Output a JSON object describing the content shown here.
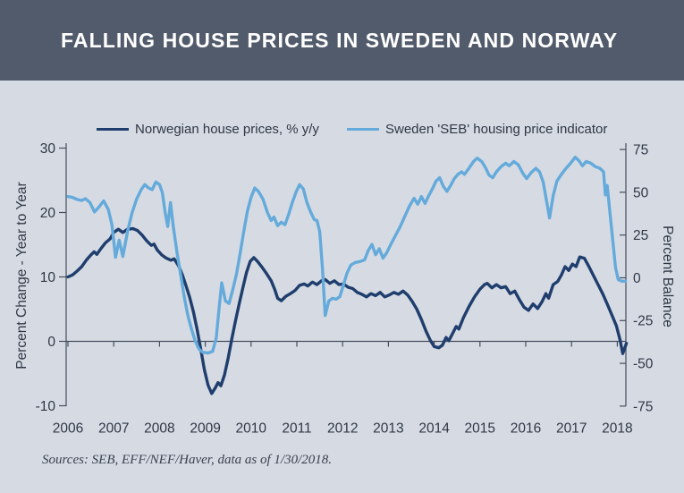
{
  "header": {
    "title": "FALLING HOUSE PRICES IN SWEDEN AND NORWAY"
  },
  "legend": [
    {
      "label": "Norwegian house prices, % y/y",
      "color": "#1f3e6d"
    },
    {
      "label": "Sweden 'SEB' housing price indicator",
      "color": "#64aadb"
    }
  ],
  "source_note": "Sources: SEB, EFF/NEF/Haver, data as of 1/30/2018.",
  "colors": {
    "header_background": "#525b6c",
    "page_background": "#d6dbe3",
    "axis_line": "#454d5d",
    "tick_text": "#2f3744",
    "norway_line": "#1f3e6d",
    "sweden_line": "#64aadb"
  },
  "chart_data": {
    "type": "line",
    "title": "FALLING HOUSE PRICES IN SWEDEN AND NORWAY",
    "grid": "zero-baseline-only",
    "legend_position": "top",
    "x_ticks": [
      "2006",
      "2007",
      "2008",
      "2009",
      "2010",
      "2011",
      "2012",
      "2013",
      "2014",
      "2015",
      "2016",
      "2017",
      "2018"
    ],
    "left_axis": {
      "label": "Percent Change - Year to Year",
      "ticks": [
        30,
        20,
        10,
        0,
        -10
      ],
      "range": [
        -10,
        30
      ]
    },
    "right_axis": {
      "label": "Percent Balance",
      "ticks": [
        75,
        50,
        25,
        0,
        -25,
        -50,
        -75
      ],
      "range": [
        -75,
        75
      ]
    },
    "series": [
      {
        "name": "Norwegian house prices, % y/y",
        "axis": "left",
        "color": "#1f3e6d",
        "points": [
          [
            2006.0,
            10
          ],
          [
            2006.1,
            10.3
          ],
          [
            2006.2,
            10.9
          ],
          [
            2006.3,
            11.6
          ],
          [
            2006.4,
            12.6
          ],
          [
            2006.5,
            13.4
          ],
          [
            2006.57,
            13.9
          ],
          [
            2006.63,
            13.5
          ],
          [
            2006.72,
            14.4
          ],
          [
            2006.82,
            15.3
          ],
          [
            2006.92,
            15.9
          ],
          [
            2007.0,
            16.9
          ],
          [
            2007.1,
            17.4
          ],
          [
            2007.2,
            16.9
          ],
          [
            2007.3,
            17.4
          ],
          [
            2007.42,
            17.5
          ],
          [
            2007.52,
            17.2
          ],
          [
            2007.62,
            16.5
          ],
          [
            2007.72,
            15.6
          ],
          [
            2007.82,
            14.9
          ],
          [
            2007.88,
            15.1
          ],
          [
            2007.95,
            14.2
          ],
          [
            2008.05,
            13.4
          ],
          [
            2008.15,
            12.9
          ],
          [
            2008.25,
            12.6
          ],
          [
            2008.32,
            12.8
          ],
          [
            2008.42,
            11.7
          ],
          [
            2008.5,
            10.3
          ],
          [
            2008.58,
            8.6
          ],
          [
            2008.66,
            6.8
          ],
          [
            2008.74,
            4.6
          ],
          [
            2008.82,
            1.9
          ],
          [
            2008.9,
            -1.2
          ],
          [
            2008.98,
            -4.4
          ],
          [
            2009.06,
            -6.8
          ],
          [
            2009.14,
            -8.1
          ],
          [
            2009.22,
            -7.2
          ],
          [
            2009.28,
            -6.4
          ],
          [
            2009.34,
            -6.9
          ],
          [
            2009.42,
            -5.2
          ],
          [
            2009.5,
            -2.6
          ],
          [
            2009.58,
            0.4
          ],
          [
            2009.66,
            3.2
          ],
          [
            2009.74,
            5.8
          ],
          [
            2009.82,
            8.3
          ],
          [
            2009.9,
            10.7
          ],
          [
            2009.98,
            12.4
          ],
          [
            2010.06,
            13.0
          ],
          [
            2010.14,
            12.4
          ],
          [
            2010.24,
            11.5
          ],
          [
            2010.34,
            10.5
          ],
          [
            2010.44,
            9.4
          ],
          [
            2010.52,
            8.0
          ],
          [
            2010.58,
            6.7
          ],
          [
            2010.66,
            6.3
          ],
          [
            2010.76,
            7.0
          ],
          [
            2010.86,
            7.4
          ],
          [
            2010.96,
            7.9
          ],
          [
            2011.06,
            8.7
          ],
          [
            2011.16,
            8.9
          ],
          [
            2011.24,
            8.6
          ],
          [
            2011.34,
            9.2
          ],
          [
            2011.44,
            8.8
          ],
          [
            2011.54,
            9.4
          ],
          [
            2011.62,
            9.6
          ],
          [
            2011.72,
            9.0
          ],
          [
            2011.82,
            9.4
          ],
          [
            2011.92,
            8.8
          ],
          [
            2012.02,
            8.9
          ],
          [
            2012.12,
            8.4
          ],
          [
            2012.22,
            8.2
          ],
          [
            2012.32,
            7.6
          ],
          [
            2012.42,
            7.3
          ],
          [
            2012.52,
            6.9
          ],
          [
            2012.62,
            7.4
          ],
          [
            2012.72,
            7.1
          ],
          [
            2012.82,
            7.6
          ],
          [
            2012.92,
            6.9
          ],
          [
            2013.02,
            7.2
          ],
          [
            2013.12,
            7.6
          ],
          [
            2013.22,
            7.3
          ],
          [
            2013.32,
            7.8
          ],
          [
            2013.42,
            7.2
          ],
          [
            2013.52,
            6.2
          ],
          [
            2013.62,
            5.0
          ],
          [
            2013.72,
            3.4
          ],
          [
            2013.82,
            1.6
          ],
          [
            2013.92,
            0.1
          ],
          [
            2014.0,
            -0.8
          ],
          [
            2014.1,
            -1.0
          ],
          [
            2014.18,
            -0.6
          ],
          [
            2014.26,
            0.6
          ],
          [
            2014.32,
            0.1
          ],
          [
            2014.4,
            1.2
          ],
          [
            2014.48,
            2.3
          ],
          [
            2014.54,
            1.9
          ],
          [
            2014.64,
            3.7
          ],
          [
            2014.76,
            5.4
          ],
          [
            2014.88,
            6.9
          ],
          [
            2015.0,
            8.1
          ],
          [
            2015.1,
            8.8
          ],
          [
            2015.16,
            9.0
          ],
          [
            2015.26,
            8.3
          ],
          [
            2015.36,
            8.8
          ],
          [
            2015.46,
            8.3
          ],
          [
            2015.56,
            8.5
          ],
          [
            2015.66,
            7.4
          ],
          [
            2015.76,
            7.8
          ],
          [
            2015.86,
            6.5
          ],
          [
            2015.96,
            5.3
          ],
          [
            2016.06,
            4.8
          ],
          [
            2016.16,
            5.8
          ],
          [
            2016.26,
            5.1
          ],
          [
            2016.36,
            6.2
          ],
          [
            2016.44,
            7.4
          ],
          [
            2016.5,
            6.7
          ],
          [
            2016.6,
            8.8
          ],
          [
            2016.7,
            9.3
          ],
          [
            2016.78,
            10.3
          ],
          [
            2016.86,
            11.6
          ],
          [
            2016.94,
            11.0
          ],
          [
            2017.02,
            12.0
          ],
          [
            2017.1,
            11.6
          ],
          [
            2017.18,
            13.1
          ],
          [
            2017.28,
            12.9
          ],
          [
            2017.38,
            11.6
          ],
          [
            2017.48,
            10.2
          ],
          [
            2017.58,
            8.8
          ],
          [
            2017.68,
            7.4
          ],
          [
            2017.78,
            5.8
          ],
          [
            2017.88,
            4.1
          ],
          [
            2017.98,
            2.4
          ],
          [
            2018.06,
            0.2
          ],
          [
            2018.12,
            -1.9
          ],
          [
            2018.2,
            -0.3
          ]
        ]
      },
      {
        "name": "Sweden 'SEB' housing price indicator",
        "axis": "right",
        "color": "#64aadb",
        "points": [
          [
            2006.0,
            47.5
          ],
          [
            2006.1,
            47.0
          ],
          [
            2006.2,
            45.8
          ],
          [
            2006.3,
            45.2
          ],
          [
            2006.38,
            46.3
          ],
          [
            2006.48,
            44.0
          ],
          [
            2006.58,
            38.5
          ],
          [
            2006.68,
            41.5
          ],
          [
            2006.78,
            45.0
          ],
          [
            2006.88,
            40.0
          ],
          [
            2006.96,
            31.0
          ],
          [
            2007.04,
            12.0
          ],
          [
            2007.12,
            22.0
          ],
          [
            2007.2,
            12.5
          ],
          [
            2007.3,
            27.0
          ],
          [
            2007.4,
            38.0
          ],
          [
            2007.5,
            46.0
          ],
          [
            2007.6,
            51.5
          ],
          [
            2007.68,
            54.5
          ],
          [
            2007.76,
            52.5
          ],
          [
            2007.84,
            51.5
          ],
          [
            2007.92,
            56.0
          ],
          [
            2008.0,
            54.5
          ],
          [
            2008.06,
            50.0
          ],
          [
            2008.12,
            39.0
          ],
          [
            2008.18,
            30.0
          ],
          [
            2008.24,
            44.0
          ],
          [
            2008.3,
            30.0
          ],
          [
            2008.38,
            15.0
          ],
          [
            2008.46,
            2.0
          ],
          [
            2008.54,
            -11.0
          ],
          [
            2008.62,
            -22.0
          ],
          [
            2008.7,
            -30.0
          ],
          [
            2008.78,
            -37.0
          ],
          [
            2008.86,
            -41.5
          ],
          [
            2008.94,
            -43.5
          ],
          [
            2009.06,
            -44.0
          ],
          [
            2009.16,
            -43.0
          ],
          [
            2009.24,
            -35.0
          ],
          [
            2009.3,
            -18.0
          ],
          [
            2009.36,
            -3.0
          ],
          [
            2009.44,
            -13.5
          ],
          [
            2009.52,
            -15.0
          ],
          [
            2009.6,
            -7.0
          ],
          [
            2009.68,
            2.0
          ],
          [
            2009.76,
            14.0
          ],
          [
            2009.84,
            27.0
          ],
          [
            2009.92,
            39.0
          ],
          [
            2010.0,
            47.0
          ],
          [
            2010.08,
            52.5
          ],
          [
            2010.16,
            50.5
          ],
          [
            2010.26,
            46.0
          ],
          [
            2010.36,
            38.0
          ],
          [
            2010.44,
            33.5
          ],
          [
            2010.5,
            35.5
          ],
          [
            2010.58,
            30.5
          ],
          [
            2010.66,
            32.5
          ],
          [
            2010.74,
            31.0
          ],
          [
            2010.82,
            37.0
          ],
          [
            2010.9,
            44.0
          ],
          [
            2010.98,
            50.0
          ],
          [
            2011.06,
            54.5
          ],
          [
            2011.14,
            52.0
          ],
          [
            2011.22,
            44.0
          ],
          [
            2011.3,
            38.5
          ],
          [
            2011.38,
            34.0
          ],
          [
            2011.44,
            33.5
          ],
          [
            2011.5,
            27.0
          ],
          [
            2011.56,
            5.0
          ],
          [
            2011.62,
            -22.0
          ],
          [
            2011.7,
            -13.5
          ],
          [
            2011.78,
            -12.0
          ],
          [
            2011.86,
            -12.5
          ],
          [
            2011.94,
            -11.0
          ],
          [
            2012.02,
            -4.0
          ],
          [
            2012.1,
            3.0
          ],
          [
            2012.18,
            7.5
          ],
          [
            2012.28,
            9.0
          ],
          [
            2012.38,
            9.5
          ],
          [
            2012.48,
            10.5
          ],
          [
            2012.56,
            16.0
          ],
          [
            2012.64,
            19.5
          ],
          [
            2012.72,
            13.5
          ],
          [
            2012.8,
            17.0
          ],
          [
            2012.88,
            11.5
          ],
          [
            2012.96,
            14.5
          ],
          [
            2013.06,
            20.0
          ],
          [
            2013.16,
            25.0
          ],
          [
            2013.26,
            30.0
          ],
          [
            2013.36,
            36.0
          ],
          [
            2013.46,
            42.0
          ],
          [
            2013.56,
            46.5
          ],
          [
            2013.64,
            43.0
          ],
          [
            2013.72,
            47.5
          ],
          [
            2013.8,
            43.5
          ],
          [
            2013.88,
            48.0
          ],
          [
            2013.96,
            52.0
          ],
          [
            2014.04,
            56.5
          ],
          [
            2014.12,
            58.5
          ],
          [
            2014.2,
            53.5
          ],
          [
            2014.28,
            50.5
          ],
          [
            2014.36,
            54.0
          ],
          [
            2014.44,
            58.0
          ],
          [
            2014.52,
            60.5
          ],
          [
            2014.6,
            62.0
          ],
          [
            2014.66,
            60.5
          ],
          [
            2014.76,
            64.0
          ],
          [
            2014.86,
            68.0
          ],
          [
            2014.94,
            70.0
          ],
          [
            2015.04,
            68.0
          ],
          [
            2015.12,
            64.5
          ],
          [
            2015.2,
            60.0
          ],
          [
            2015.28,
            58.5
          ],
          [
            2015.36,
            62.0
          ],
          [
            2015.46,
            65.0
          ],
          [
            2015.56,
            67.0
          ],
          [
            2015.64,
            65.5
          ],
          [
            2015.74,
            68.0
          ],
          [
            2015.84,
            66.0
          ],
          [
            2015.94,
            61.0
          ],
          [
            2016.02,
            58.0
          ],
          [
            2016.12,
            61.5
          ],
          [
            2016.22,
            64.0
          ],
          [
            2016.3,
            62.0
          ],
          [
            2016.38,
            56.0
          ],
          [
            2016.46,
            44.0
          ],
          [
            2016.52,
            35.0
          ],
          [
            2016.6,
            48.0
          ],
          [
            2016.68,
            56.5
          ],
          [
            2016.78,
            60.5
          ],
          [
            2016.88,
            64.0
          ],
          [
            2016.98,
            67.0
          ],
          [
            2017.08,
            70.5
          ],
          [
            2017.16,
            68.5
          ],
          [
            2017.24,
            65.5
          ],
          [
            2017.32,
            68.0
          ],
          [
            2017.42,
            67.0
          ],
          [
            2017.52,
            65.0
          ],
          [
            2017.62,
            64.0
          ],
          [
            2017.7,
            62.0
          ],
          [
            2017.74,
            48.5
          ],
          [
            2017.78,
            54.0
          ],
          [
            2017.84,
            38.0
          ],
          [
            2017.9,
            22.0
          ],
          [
            2017.96,
            6.0
          ],
          [
            2018.02,
            -1.0
          ],
          [
            2018.1,
            -2.0
          ],
          [
            2018.18,
            -2.0
          ]
        ]
      }
    ]
  }
}
